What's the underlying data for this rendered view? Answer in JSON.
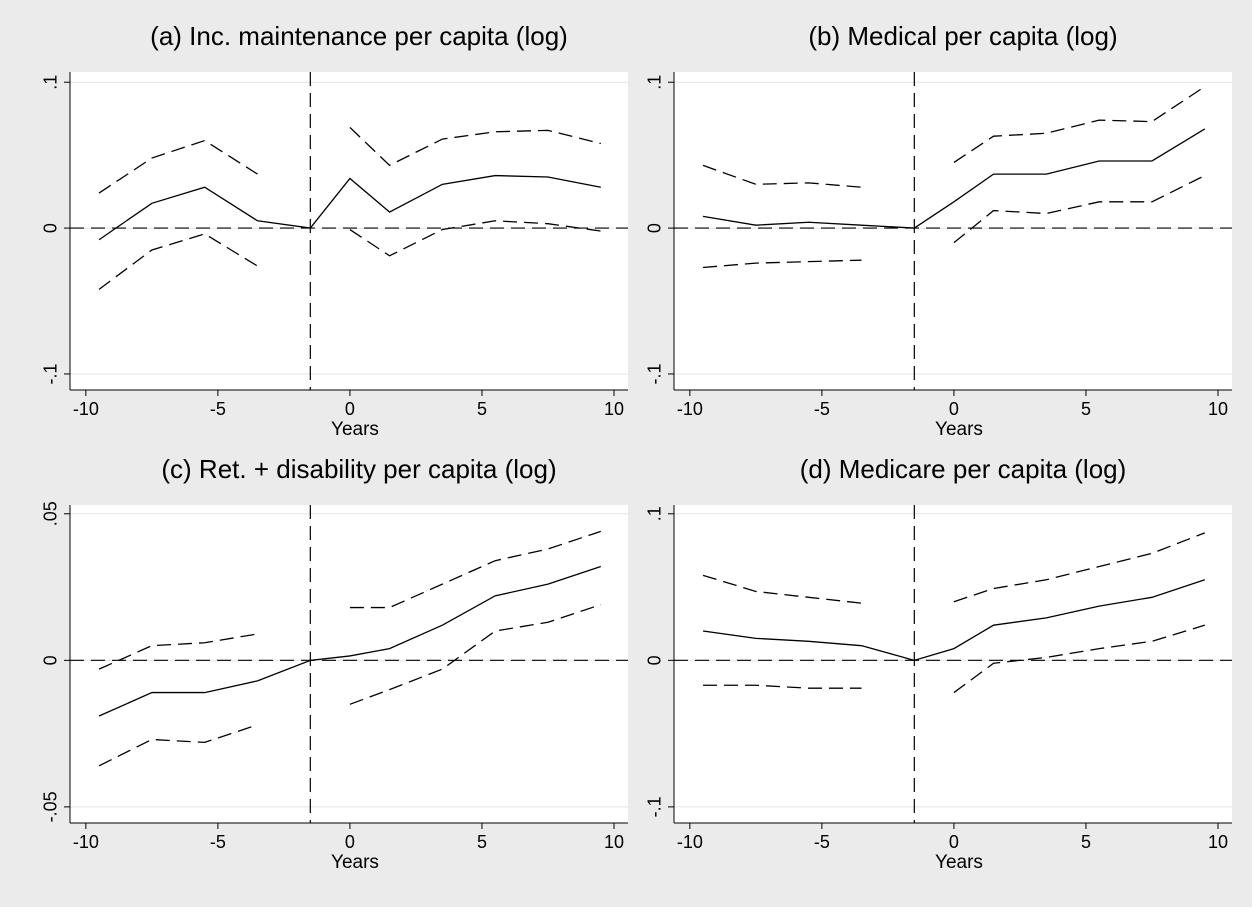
{
  "chart_data": [
    {
      "type": "line",
      "title": "(a) Inc. maintenance per capita (log)",
      "xlabel": "Years",
      "x": [
        -9.5,
        -7.5,
        -5.5,
        -3.5,
        -1.5,
        0,
        1.5,
        3.5,
        5.5,
        7.5,
        9.5
      ],
      "series": [
        {
          "color": "#000000",
          "style": "solid",
          "values": [
            -0.008,
            0.017,
            0.028,
            0.005,
            0,
            0.034,
            0.011,
            0.03,
            0.036,
            0.035,
            0.028
          ]
        },
        {
          "color": "#000000",
          "style": "dashed",
          "values": [
            0.024,
            0.048,
            0.06,
            0.037,
            null,
            0.069,
            0.043,
            0.061,
            0.066,
            0.067,
            0.058
          ]
        },
        {
          "color": "#000000",
          "style": "dashed",
          "values": [
            -0.042,
            -0.015,
            -0.004,
            -0.026,
            null,
            -0.001,
            -0.019,
            -0.001,
            0.005,
            0.003,
            -0.002
          ]
        }
      ],
      "xlim": [
        -10.6,
        10.53
      ],
      "xticks": [
        -10,
        -5,
        0,
        5,
        10
      ],
      "ylim": [
        -0.111,
        0.107
      ],
      "yticks": [
        {
          "value": -0.1,
          "label": "-.1"
        },
        0,
        {
          "value": 0.1,
          "label": ".1"
        }
      ],
      "xline": -1.5,
      "yline": 0,
      "grid": true
    },
    {
      "type": "line",
      "title": "(b) Medical per capita (log)",
      "xlabel": "Years",
      "x": [
        -9.5,
        -7.5,
        -5.5,
        -3.5,
        -1.5,
        0,
        1.5,
        3.5,
        5.5,
        7.5,
        9.5
      ],
      "series": [
        {
          "color": "#000000",
          "style": "solid",
          "values": [
            0.008,
            0.002,
            0.004,
            0.002,
            0,
            0.018,
            0.037,
            0.037,
            0.046,
            0.046,
            0.068
          ]
        },
        {
          "color": "#000000",
          "style": "dashed",
          "values": [
            0.043,
            0.03,
            0.031,
            0.028,
            null,
            0.045,
            0.063,
            0.065,
            0.074,
            0.073,
            0.097
          ]
        },
        {
          "color": "#000000",
          "style": "dashed",
          "values": [
            -0.027,
            -0.024,
            -0.023,
            -0.022,
            null,
            -0.01,
            0.012,
            0.01,
            0.018,
            0.018,
            0.036
          ]
        }
      ],
      "xlim": [
        -10.6,
        10.53
      ],
      "xticks": [
        -10,
        -5,
        0,
        5,
        10
      ],
      "ylim": [
        -0.111,
        0.107
      ],
      "yticks": [
        {
          "value": -0.1,
          "label": "-.1"
        },
        0,
        {
          "value": 0.1,
          "label": ".1"
        }
      ],
      "xline": -1.5,
      "yline": 0,
      "grid": true
    },
    {
      "type": "line",
      "title": "(c) Ret. + disability per capita (log)",
      "xlabel": "Years",
      "x": [
        -9.5,
        -7.5,
        -5.5,
        -3.5,
        -1.5,
        0,
        1.5,
        3.5,
        5.5,
        7.5,
        9.5
      ],
      "series": [
        {
          "color": "#000000",
          "style": "solid",
          "values": [
            -0.019,
            -0.011,
            -0.011,
            -0.007,
            0,
            0.0015,
            0.004,
            0.012,
            0.022,
            0.026,
            0.032
          ]
        },
        {
          "color": "#000000",
          "style": "dashed",
          "values": [
            -0.003,
            0.005,
            0.006,
            0.009,
            null,
            0.018,
            0.018,
            0.026,
            0.034,
            0.038,
            0.044
          ]
        },
        {
          "color": "#000000",
          "style": "dashed",
          "values": [
            -0.036,
            -0.027,
            -0.028,
            -0.022,
            null,
            -0.015,
            -0.01,
            -0.003,
            0.01,
            0.013,
            0.019
          ]
        }
      ],
      "xlim": [
        -10.6,
        10.53
      ],
      "xticks": [
        -10,
        -5,
        0,
        5,
        10
      ],
      "ylim": [
        -0.0555,
        0.053
      ],
      "yticks": [
        {
          "value": -0.05,
          "label": "-.05"
        },
        0,
        {
          "value": 0.05,
          "label": ".05"
        }
      ],
      "xline": -1.5,
      "yline": 0,
      "grid": true
    },
    {
      "type": "line",
      "title": "(d) Medicare per capita (log)",
      "xlabel": "Years",
      "x": [
        -9.5,
        -7.5,
        -5.5,
        -3.5,
        -1.5,
        0,
        1.5,
        3.5,
        5.5,
        7.5,
        9.5
      ],
      "series": [
        {
          "color": "#000000",
          "style": "solid",
          "values": [
            0.02,
            0.015,
            0.013,
            0.01,
            0,
            0.008,
            0.024,
            0.029,
            0.037,
            0.043,
            0.055
          ]
        },
        {
          "color": "#000000",
          "style": "dashed",
          "values": [
            0.058,
            0.047,
            0.043,
            0.039,
            null,
            0.04,
            0.049,
            0.055,
            0.064,
            0.073,
            0.087
          ]
        },
        {
          "color": "#000000",
          "style": "dashed",
          "values": [
            -0.017,
            -0.017,
            -0.019,
            -0.019,
            null,
            -0.022,
            -0.002,
            0.002,
            0.008,
            0.013,
            0.024
          ]
        }
      ],
      "xlim": [
        -10.6,
        10.53
      ],
      "xticks": [
        -10,
        -5,
        0,
        5,
        10
      ],
      "ylim": [
        -0.111,
        0.106
      ],
      "yticks": [
        {
          "value": -0.1,
          "label": "-.1"
        },
        0,
        {
          "value": 0.1,
          "label": ".1"
        }
      ],
      "xline": -1.5,
      "yline": 0,
      "grid": true
    }
  ]
}
